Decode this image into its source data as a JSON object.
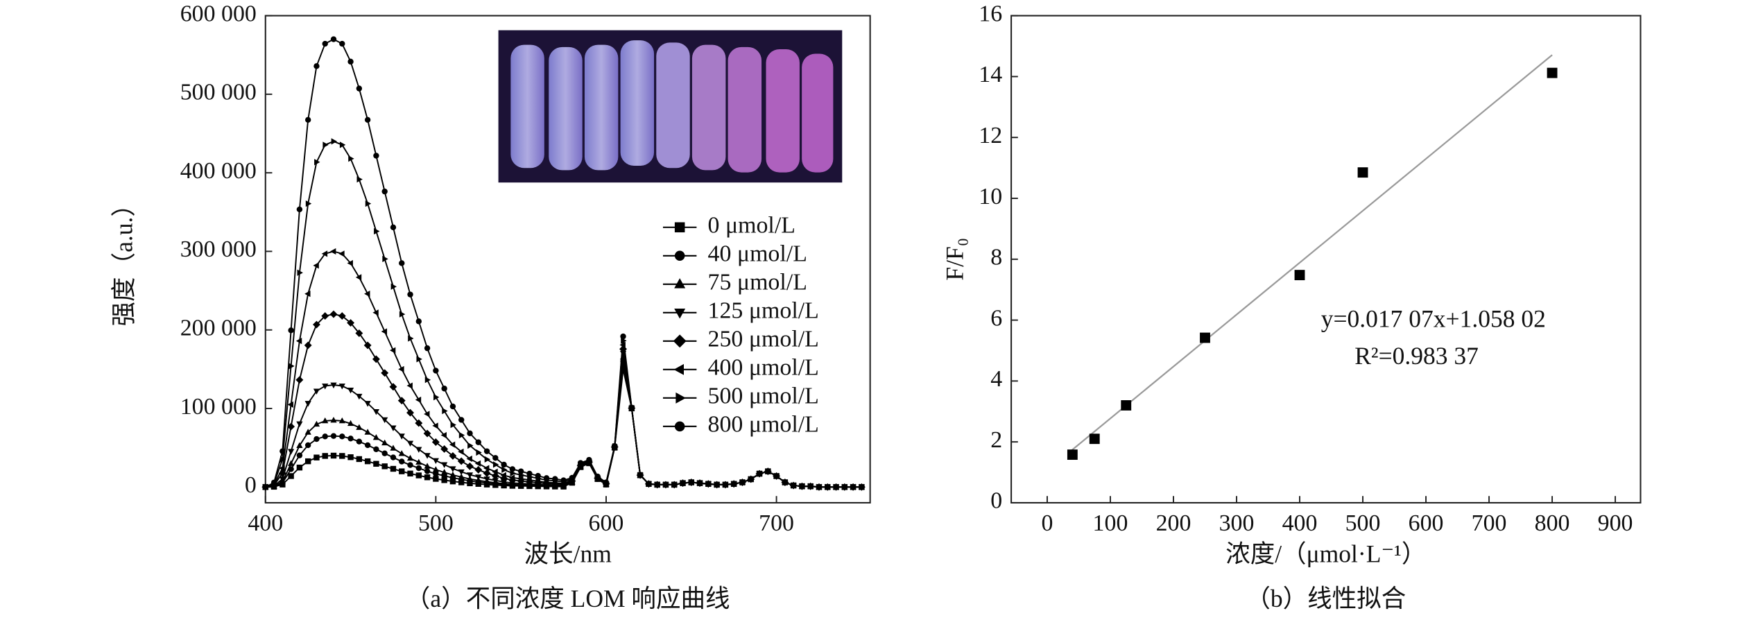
{
  "chart_data": [
    {
      "type": "line",
      "y_label": "强度（a.u.）",
      "x_label": "波长/nm",
      "caption": "（a）不同浓度 LOM 响应曲线",
      "xlim": [
        400,
        755
      ],
      "xticks": [
        400,
        500,
        600,
        700
      ],
      "ylim": [
        -20000,
        600000
      ],
      "yticks": [
        0,
        {
          "value": 100000,
          "label": "100 000"
        },
        {
          "value": 200000,
          "label": "200 000"
        },
        {
          "value": 300000,
          "label": "300 000"
        },
        {
          "value": 400000,
          "label": "400 000"
        },
        {
          "value": 500000,
          "label": "500 000"
        },
        {
          "value": 600000,
          "label": "600 000"
        }
      ],
      "legend": "center right",
      "x": [
        400,
        405,
        410,
        415,
        420,
        425,
        430,
        435,
        440,
        445,
        450,
        455,
        460,
        465,
        470,
        475,
        480,
        485,
        490,
        495,
        500,
        505,
        510,
        515,
        520,
        525,
        530,
        535,
        540,
        545,
        550,
        555,
        560,
        565,
        570,
        575,
        580,
        585,
        590,
        595,
        600,
        605,
        610,
        615,
        620,
        625,
        630,
        635,
        640,
        645,
        650,
        655,
        660,
        665,
        670,
        675,
        680,
        685,
        690,
        695,
        700,
        705,
        710,
        715,
        720,
        725,
        730,
        735,
        740,
        745,
        750
      ],
      "series": [
        {
          "name": "0 μmol/L",
          "color": "#000000",
          "marker": "square",
          "values": [
            0,
            400,
            3200,
            14000,
            24800,
            32800,
            37600,
            39600,
            40000,
            39600,
            38000,
            35600,
            32800,
            29600,
            26400,
            23200,
            20000,
            17200,
            14800,
            12400,
            10400,
            8800,
            7200,
            6000,
            4800,
            4000,
            3200,
            2600,
            2000,
            1600,
            1400,
            1200,
            1000,
            800,
            700,
            600,
            5500,
            25400,
            30300,
            10200,
            3200,
            50200,
            150100,
            100100,
            15000,
            4000,
            3000,
            3000,
            3000,
            5000,
            6000,
            5000,
            4000,
            3000,
            3000,
            4000,
            6000,
            10000,
            17000,
            20000,
            14000,
            6000,
            2000,
            1000,
            1000,
            0,
            0,
            0,
            0,
            0,
            0
          ]
        },
        {
          "name": "40 μmol/L",
          "color": "#000000",
          "marker": "circle",
          "values": [
            0,
            700,
            5200,
            22800,
            40300,
            53300,
            61100,
            64400,
            65000,
            64400,
            61800,
            57900,
            53300,
            48100,
            42900,
            37700,
            32500,
            28000,
            24100,
            20200,
            16900,
            14300,
            11700,
            9800,
            7800,
            6500,
            5200,
            4200,
            3300,
            2600,
            2300,
            2000,
            1600,
            1300,
            1200,
            1000,
            5800,
            25700,
            30500,
            10400,
            3300,
            50300,
            160200,
            100100,
            15100,
            4000,
            3000,
            3000,
            3000,
            5000,
            6000,
            5000,
            4000,
            3000,
            3000,
            4000,
            6000,
            10000,
            17000,
            20000,
            14000,
            6000,
            2000,
            1000,
            1000,
            0,
            0,
            0,
            0,
            0,
            0
          ]
        },
        {
          "name": "75 μmol/L",
          "color": "#000000",
          "marker": "triangle-up",
          "values": [
            0,
            900,
            6800,
            29800,
            52700,
            69700,
            79900,
            84200,
            85000,
            84200,
            80800,
            75700,
            69700,
            62900,
            56100,
            49300,
            42500,
            36600,
            31500,
            26400,
            22100,
            18700,
            15300,
            12800,
            10200,
            8500,
            6800,
            5500,
            4300,
            3400,
            3000,
            2600,
            2100,
            1700,
            1500,
            1300,
            6000,
            25900,
            30700,
            10500,
            3400,
            50300,
            165300,
            100200,
            15100,
            4000,
            3000,
            3000,
            3000,
            5000,
            6000,
            5000,
            4000,
            3000,
            3000,
            4000,
            6000,
            10000,
            17000,
            20000,
            14000,
            6000,
            2000,
            1000,
            1000,
            0,
            0,
            0,
            0,
            0,
            0
          ]
        },
        {
          "name": "125 μmol/L",
          "color": "#000000",
          "marker": "triangle-down",
          "values": [
            0,
            1300,
            10400,
            45500,
            80600,
            106600,
            122200,
            128700,
            130000,
            128700,
            123500,
            115700,
            106600,
            96200,
            85800,
            75400,
            65000,
            55900,
            48100,
            40300,
            33800,
            28600,
            23400,
            19500,
            15600,
            13000,
            10400,
            8500,
            6500,
            5200,
            4600,
            3900,
            3300,
            2600,
            2300,
            2000,
            6600,
            26300,
            31000,
            10800,
            3700,
            50500,
            170400,
            100300,
            15100,
            4000,
            3000,
            3000,
            3000,
            5000,
            6000,
            5000,
            4000,
            3000,
            3000,
            4000,
            6000,
            10000,
            17000,
            20000,
            14000,
            6000,
            2000,
            1000,
            1000,
            0,
            0,
            0,
            0,
            0,
            0
          ]
        },
        {
          "name": "250 μmol/L",
          "color": "#000000",
          "marker": "diamond",
          "values": [
            0,
            2200,
            17600,
            77000,
            136400,
            180400,
            206800,
            217800,
            220000,
            217800,
            209000,
            195800,
            180400,
            162800,
            145200,
            127600,
            110000,
            94600,
            81400,
            68200,
            57200,
            48400,
            39600,
            33000,
            26400,
            22000,
            17600,
            14300,
            11000,
            8800,
            7700,
            6600,
            5500,
            4400,
            4000,
            3300,
            7600,
            27200,
            31800,
            11300,
            4100,
            50900,
            175700,
            100400,
            15200,
            4000,
            3000,
            3000,
            3000,
            5000,
            6000,
            5000,
            4000,
            3000,
            3000,
            4000,
            6000,
            10000,
            17000,
            20000,
            14000,
            6000,
            2000,
            1000,
            1000,
            0,
            0,
            0,
            0,
            0,
            0
          ]
        },
        {
          "name": "400 μmol/L",
          "color": "#000000",
          "marker": "triangle-left",
          "values": [
            0,
            3000,
            24000,
            105000,
            186000,
            246000,
            282000,
            297000,
            300000,
            297000,
            285000,
            267000,
            246000,
            222000,
            198000,
            174000,
            150000,
            129000,
            111000,
            93000,
            78000,
            66000,
            54000,
            45000,
            36000,
            30000,
            24000,
            19500,
            15000,
            12000,
            10500,
            9000,
            7500,
            6000,
            5400,
            4500,
            8600,
            28000,
            32400,
            11800,
            4500,
            51200,
            180900,
            100600,
            15300,
            4000,
            3000,
            3000,
            3000,
            5000,
            6000,
            5000,
            4000,
            3000,
            3000,
            4000,
            6000,
            10000,
            17000,
            20000,
            14000,
            6000,
            2000,
            1000,
            1000,
            0,
            0,
            0,
            0,
            0,
            0
          ]
        },
        {
          "name": "500 μmol/L",
          "color": "#000000",
          "marker": "triangle-right",
          "values": [
            0,
            4400,
            35200,
            154000,
            272800,
            360800,
            413600,
            435600,
            440000,
            435600,
            418000,
            391600,
            360800,
            325600,
            290400,
            255200,
            220000,
            189200,
            162800,
            136400,
            114400,
            96800,
            79200,
            66000,
            52800,
            44000,
            35200,
            28600,
            22000,
            17600,
            15400,
            13200,
            11000,
            8800,
            7900,
            6600,
            10300,
            29400,
            33500,
            12600,
            5200,
            51800,
            186300,
            100900,
            15400,
            4000,
            3000,
            3000,
            3000,
            5000,
            6000,
            5000,
            4000,
            3000,
            3000,
            4000,
            6000,
            10000,
            17000,
            20000,
            14000,
            6000,
            2000,
            1000,
            1000,
            0,
            0,
            0,
            0,
            0,
            0
          ]
        },
        {
          "name": "800 μmol/L",
          "color": "#000000",
          "marker": "circle",
          "values": [
            0,
            5700,
            45600,
            199500,
            353400,
            467400,
            535800,
            564300,
            570000,
            564300,
            541500,
            507300,
            467400,
            421800,
            376200,
            330600,
            285000,
            245100,
            210900,
            176700,
            148200,
            125400,
            102600,
            85500,
            68400,
            57000,
            45600,
            37100,
            28500,
            22800,
            20000,
            17100,
            14300,
            11400,
            10300,
            8600,
            11800,
            30700,
            34600,
            13400,
            5900,
            52300,
            191700,
            101100,
            15600,
            4000,
            3000,
            3000,
            3000,
            5000,
            6000,
            5000,
            4000,
            3000,
            3000,
            4000,
            6000,
            10000,
            17000,
            20000,
            14000,
            6000,
            2000,
            1000,
            1000,
            0,
            0,
            0,
            0,
            0,
            0
          ]
        }
      ]
    },
    {
      "type": "scatter",
      "y_label": "F/F₀",
      "x_label": "浓度/（μmol·L⁻¹）",
      "caption": "（b）线性拟合",
      "xlim": [
        -57,
        940
      ],
      "xticks": [
        0,
        100,
        200,
        300,
        400,
        500,
        600,
        700,
        800,
        900
      ],
      "ylim": [
        0,
        16
      ],
      "yticks": [
        0,
        2,
        4,
        6,
        8,
        10,
        12,
        14,
        16
      ],
      "x": [
        40,
        75,
        125,
        250,
        400,
        500,
        800
      ],
      "values": [
        1.58,
        2.1,
        3.2,
        5.42,
        7.48,
        10.85,
        14.12
      ],
      "color": "#000000",
      "fit": {
        "x": [
          35,
          800
        ],
        "values": [
          1.66,
          14.71
        ],
        "color": "#9a9a9a"
      },
      "annotations": [
        "y=0.017 07x+1.058 02",
        "R²=0.983 37"
      ]
    }
  ]
}
